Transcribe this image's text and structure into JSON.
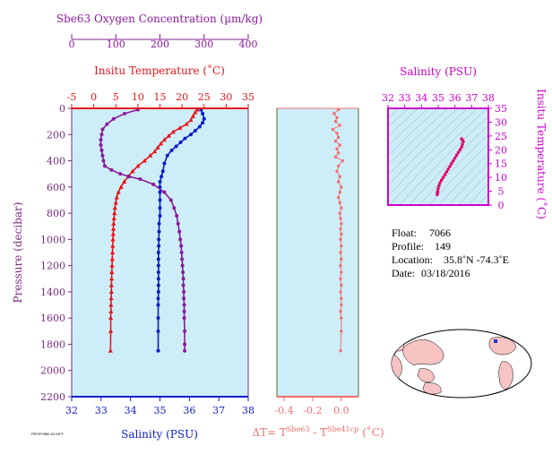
{
  "colors": {
    "panel_bg": "#cdeef8",
    "temperature": "#e8151b",
    "salinity": "#0a1ec8",
    "oxygen": "#8a1a9b",
    "delta": "#f07070",
    "pressure_axis": "#7a2a80",
    "ts_axis": "#cc00cc",
    "ts_curve": "#e01070",
    "ts_right_axis_label": "#cc00cc",
    "delta_right_frame": "#556b2f"
  },
  "chart_data": [
    {
      "type": "line",
      "title": "",
      "ylabel": "Pressure (decibar)",
      "ylim": [
        2200,
        0
      ],
      "yticks": [
        "0",
        "200",
        "400",
        "600",
        "800",
        "1000",
        "1200",
        "1400",
        "1600",
        "1800",
        "2000",
        "2200"
      ],
      "axes": {
        "oxygen": {
          "label": "Sbe63 Oxygen Concentration (µm/kg)",
          "range": [
            0,
            400
          ],
          "ticks": [
            "0",
            "100",
            "200",
            "300",
            "400"
          ]
        },
        "temperature": {
          "label": "Insitu Temperature (˚C)",
          "range": [
            -5,
            35
          ],
          "ticks": [
            "-5",
            "0",
            "5",
            "10",
            "15",
            "20",
            "25",
            "30",
            "35"
          ]
        },
        "salinity": {
          "label": "Salinity (PSU)",
          "range": [
            32,
            38
          ],
          "ticks": [
            "32",
            "33",
            "34",
            "35",
            "36",
            "37",
            "38"
          ]
        }
      },
      "series": [
        {
          "name": "Insitu Temperature",
          "marker": "triangle",
          "x": [
            23.5,
            23.0,
            22.5,
            22.0,
            21.0,
            19.5,
            18.0,
            17.0,
            16.0,
            15.2,
            14.5,
            13.8,
            12.8,
            11.5,
            10.0,
            8.8,
            7.8,
            6.9,
            6.2,
            5.6,
            5.2,
            5.0,
            4.8,
            4.7,
            4.6,
            4.5,
            4.45,
            4.4,
            4.35,
            4.3,
            4.25,
            4.2,
            4.15,
            4.1,
            4.05,
            4.0,
            4.0,
            3.95,
            3.9,
            3.9,
            3.85,
            3.85,
            3.8
          ],
          "y": [
            10,
            30,
            60,
            90,
            120,
            150,
            180,
            210,
            240,
            270,
            300,
            330,
            360,
            400,
            440,
            480,
            520,
            560,
            600,
            640,
            680,
            720,
            760,
            800,
            840,
            880,
            920,
            960,
            1000,
            1050,
            1100,
            1150,
            1200,
            1250,
            1300,
            1350,
            1400,
            1450,
            1500,
            1550,
            1600,
            1700,
            1850
          ]
        },
        {
          "name": "Salinity",
          "marker": "circle",
          "x": [
            36.4,
            36.45,
            36.5,
            36.45,
            36.35,
            36.2,
            36.05,
            35.85,
            35.7,
            35.55,
            35.4,
            35.25,
            35.15,
            35.1,
            35.05,
            35.0,
            35.0,
            35.0,
            35.0,
            35.0,
            35.0,
            34.97,
            34.97,
            34.96,
            34.96,
            34.95,
            34.95,
            34.95,
            34.95,
            34.95,
            34.95,
            34.95,
            34.94,
            34.94,
            34.94,
            34.94,
            34.94
          ],
          "y": [
            10,
            40,
            80,
            110,
            140,
            170,
            200,
            230,
            260,
            290,
            320,
            360,
            420,
            480,
            520,
            560,
            600,
            640,
            700,
            760,
            820,
            880,
            940,
            1000,
            1050,
            1100,
            1150,
            1200,
            1250,
            1300,
            1350,
            1400,
            1450,
            1500,
            1600,
            1700,
            1850
          ]
        },
        {
          "name": "Sbe63 Oxygen Concentration",
          "marker": "circle",
          "x": [
            150,
            120,
            95,
            80,
            70,
            68,
            66,
            66,
            68,
            70,
            72,
            75,
            90,
            110,
            130,
            155,
            185,
            210,
            225,
            232,
            238,
            241,
            244,
            246,
            248,
            249,
            250,
            251,
            252,
            253,
            253,
            254,
            254,
            255,
            255,
            255,
            256,
            256,
            256
          ],
          "y": [
            10,
            40,
            80,
            120,
            160,
            200,
            240,
            280,
            320,
            360,
            400,
            440,
            470,
            500,
            520,
            540,
            580,
            640,
            700,
            760,
            820,
            880,
            940,
            1000,
            1050,
            1100,
            1150,
            1200,
            1250,
            1300,
            1350,
            1400,
            1450,
            1500,
            1550,
            1600,
            1700,
            1800,
            1850
          ]
        }
      ]
    },
    {
      "type": "scatter",
      "title": "",
      "xlabel": "ΔT= T",
      "xlabel_sup1": "Sbe63",
      "xlabel_mid": " - T",
      "xlabel_sup2": "Sbe41cp",
      "xlabel_unit": " (˚C)",
      "xlim": [
        -0.45,
        0.12
      ],
      "ylim": [
        2200,
        0
      ],
      "xticks": [
        -0.4,
        -0.2,
        0.0
      ],
      "xtick_labels": [
        "-0.4",
        "-0.2",
        "0.0"
      ],
      "series": [
        {
          "name": "Delta T",
          "x": [
            -0.02,
            -0.05,
            -0.03,
            -0.04,
            -0.01,
            -0.06,
            -0.03,
            -0.02,
            -0.04,
            -0.01,
            -0.03,
            -0.02,
            -0.04,
            0.01,
            -0.02,
            -0.03,
            -0.01,
            -0.02,
            0.0,
            -0.01,
            -0.02,
            -0.01,
            0.0,
            -0.01,
            -0.005,
            0.0,
            -0.005,
            0.0,
            -0.005,
            0.0,
            -0.005,
            0.0,
            -0.005,
            0.0,
            -0.005,
            0.0,
            -0.005,
            0.0,
            0.0,
            -0.005,
            0.0,
            0.0,
            -0.005
          ],
          "y": [
            10,
            40,
            70,
            100,
            130,
            160,
            190,
            220,
            250,
            280,
            310,
            340,
            370,
            400,
            440,
            480,
            520,
            560,
            600,
            640,
            680,
            720,
            760,
            800,
            840,
            880,
            920,
            960,
            1000,
            1050,
            1100,
            1150,
            1200,
            1250,
            1300,
            1350,
            1400,
            1450,
            1500,
            1550,
            1600,
            1700,
            1850
          ]
        }
      ]
    },
    {
      "type": "line",
      "title": "",
      "xlabel": "Salinity (PSU)",
      "ylabel": "Insitu Temperature (˚C)",
      "xlim": [
        32,
        38
      ],
      "ylim": [
        0,
        35
      ],
      "xticks": [
        "32",
        "33",
        "34",
        "35",
        "36",
        "37",
        "38"
      ],
      "yticks": [
        "0",
        "5",
        "10",
        "15",
        "20",
        "25",
        "30",
        "35"
      ],
      "series": [
        {
          "name": "T-S profile",
          "x": [
            34.94,
            34.95,
            34.96,
            34.97,
            35.0,
            35.05,
            35.1,
            35.2,
            35.3,
            35.4,
            35.5,
            35.6,
            35.7,
            35.8,
            35.9,
            36.0,
            36.1,
            36.2,
            36.3,
            36.4,
            36.45,
            36.5,
            36.45,
            36.4
          ],
          "y": [
            3.8,
            4.2,
            4.6,
            5.0,
            6.0,
            7.0,
            8.0,
            9.0,
            10.0,
            11.0,
            12.0,
            13.0,
            14.0,
            15.0,
            16.0,
            17.0,
            18.0,
            19.0,
            20.0,
            21.0,
            22.0,
            23.0,
            23.5,
            24.0
          ]
        }
      ]
    }
  ],
  "info": {
    "float_label": "Float:",
    "float_value": "7066",
    "profile_label": "Profile:",
    "profile_value": "149",
    "location_label": "Location:",
    "location_value": "35.8˚N  -74.3˚E",
    "date_label": "Date:",
    "date_value": "03/18/2016"
  },
  "footer_code": "PROF/SBE-63 DIFF"
}
